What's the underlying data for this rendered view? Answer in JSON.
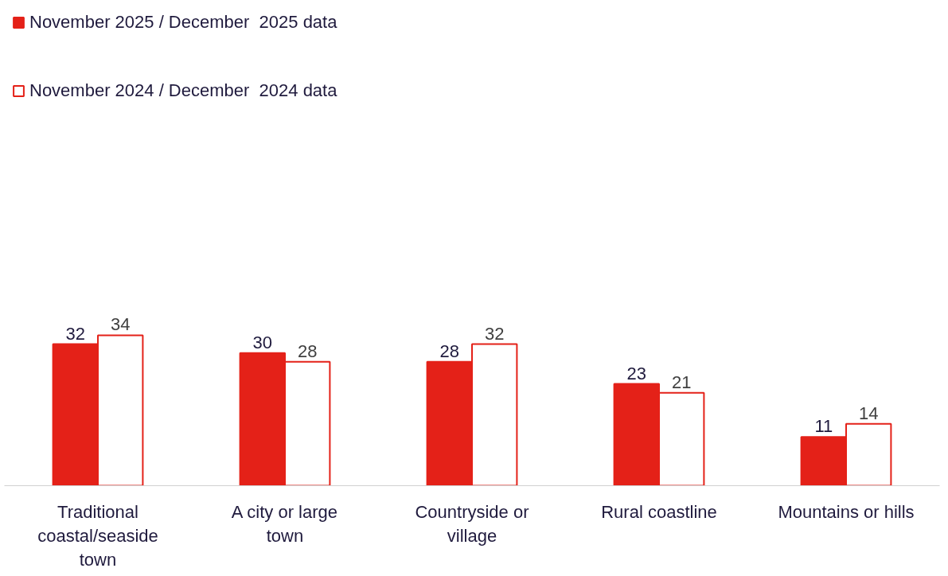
{
  "chart_data": {
    "type": "bar",
    "categories": [
      "Traditional coastal/seaside town",
      "A city or large town",
      "Countryside or village",
      "Rural coastline",
      "Mountains or hills"
    ],
    "series": [
      {
        "name": "November 2025 / December  2025 data",
        "color": "#e42118",
        "values": [
          32,
          30,
          28,
          23,
          11
        ]
      },
      {
        "name": "November 2024 / December  2024 data",
        "color": "#e42118",
        "values": [
          34,
          28,
          32,
          21,
          14
        ]
      }
    ],
    "tick_labels": "x",
    "data_labels": true,
    "legend": "top left"
  }
}
